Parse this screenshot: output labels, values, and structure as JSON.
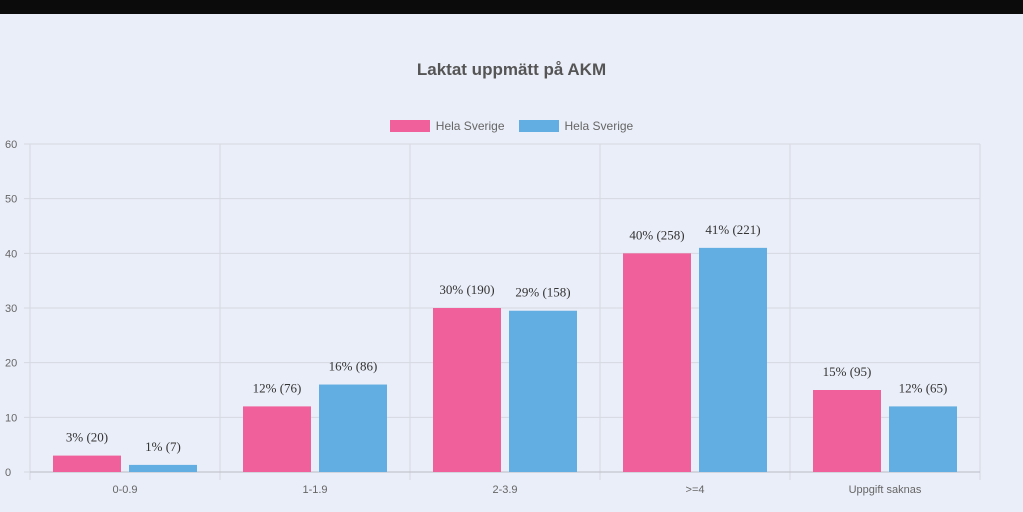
{
  "chart_data": {
    "type": "bar",
    "title": "Laktat uppmätt på AKM",
    "categories": [
      "0-0.9",
      "1-1.9",
      "2-3.9",
      ">=4",
      "Uppgift saknas"
    ],
    "series": [
      {
        "name": "Hela Sverige",
        "color": "#f0609a",
        "values": [
          3,
          12,
          30,
          40,
          15
        ],
        "labels": [
          "3% (20)",
          "12% (76)",
          "30% (190)",
          "40% (258)",
          "15% (95)"
        ]
      },
      {
        "name": "Hela Sverige",
        "color": "#62ade2",
        "values": [
          1.3,
          16,
          29.5,
          41,
          12
        ],
        "labels": [
          "1% (7)",
          "16% (86)",
          "29% (158)",
          "41% (221)",
          "12% (65)"
        ]
      }
    ],
    "ylim": [
      0,
      60
    ],
    "yticks": [
      "0",
      "10",
      "20",
      "30",
      "40",
      "50",
      "60"
    ],
    "grid": true,
    "legend_position": "top"
  }
}
